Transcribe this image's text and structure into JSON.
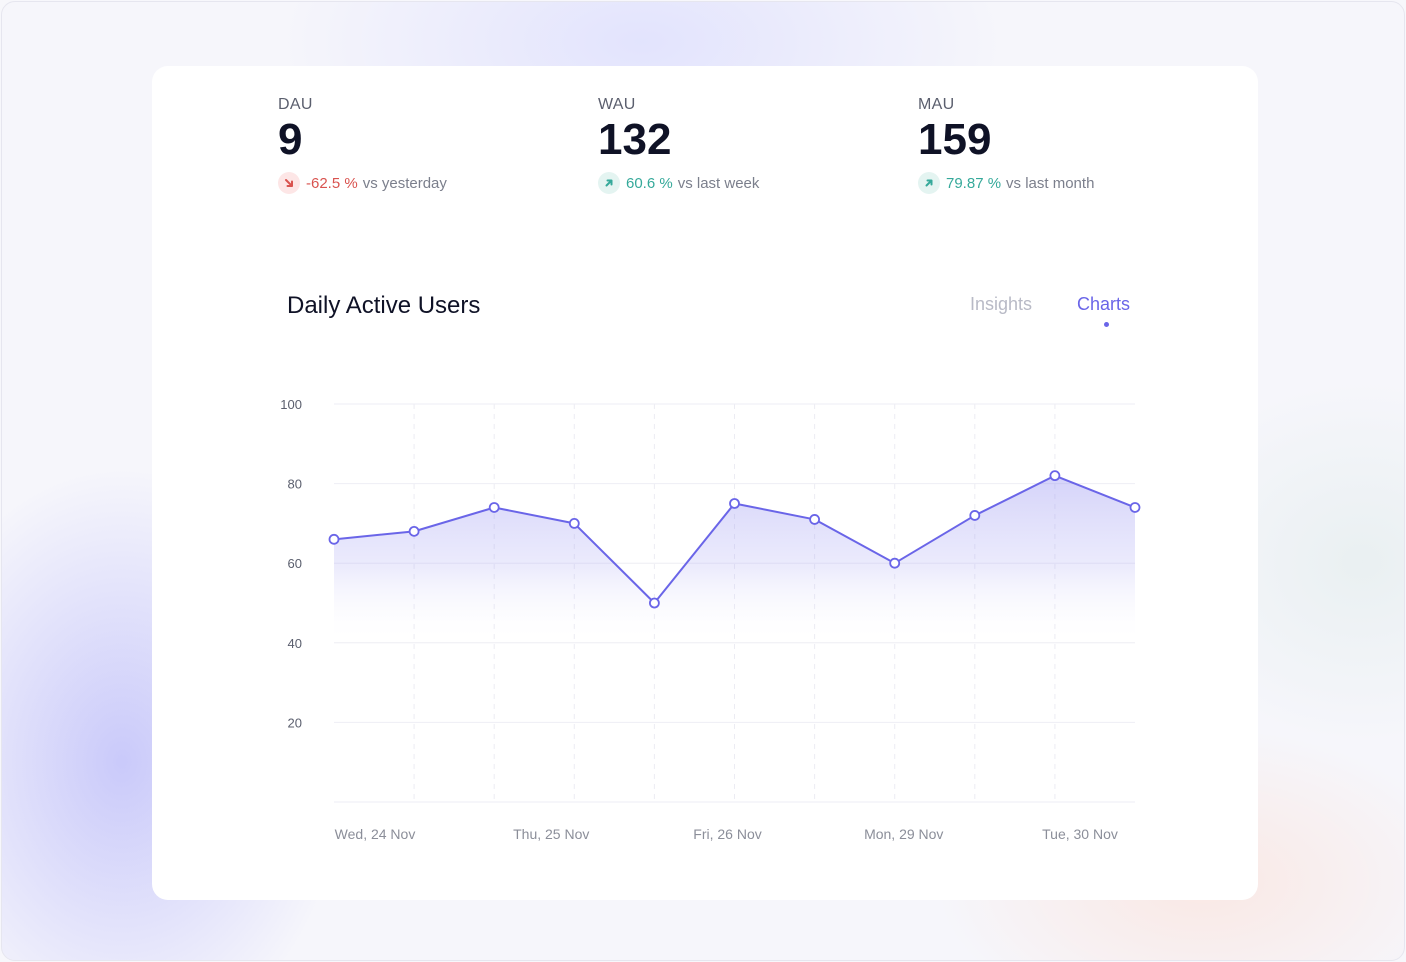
{
  "kpis": [
    {
      "label": "DAU",
      "value": "9",
      "delta": "-62.5 %",
      "delta_text": "vs yesterday",
      "trend": "down"
    },
    {
      "label": "WAU",
      "value": "132",
      "delta": "60.6 %",
      "delta_text": "vs last week",
      "trend": "up"
    },
    {
      "label": "MAU",
      "value": "159",
      "delta": "79.87 %",
      "delta_text": "vs last month",
      "trend": "up"
    }
  ],
  "chart_title": "Daily Active Users",
  "tabs": [
    {
      "label": "Insights",
      "active": false
    },
    {
      "label": "Charts",
      "active": true
    }
  ],
  "colors": {
    "accent": "#6a65e8",
    "down": "#d9534f",
    "up": "#35a99a"
  },
  "chart_data": {
    "type": "area",
    "title": "Daily Active Users",
    "x": [
      "",
      "",
      "",
      "",
      "",
      "",
      "",
      "",
      "",
      "",
      ""
    ],
    "x_tick_labels": [
      "Wed, 24 Nov",
      "Thu, 25 Nov",
      "Fri, 26 Nov",
      "Mon, 29 Nov",
      "Tue, 30 Nov"
    ],
    "series": [
      {
        "values": [
          66,
          68,
          74,
          70,
          50,
          75,
          71,
          60,
          72,
          82,
          74
        ]
      }
    ],
    "y_ticks": [
      20,
      40,
      60,
      80,
      100
    ],
    "ylim": [
      0,
      100
    ],
    "grid": true
  }
}
